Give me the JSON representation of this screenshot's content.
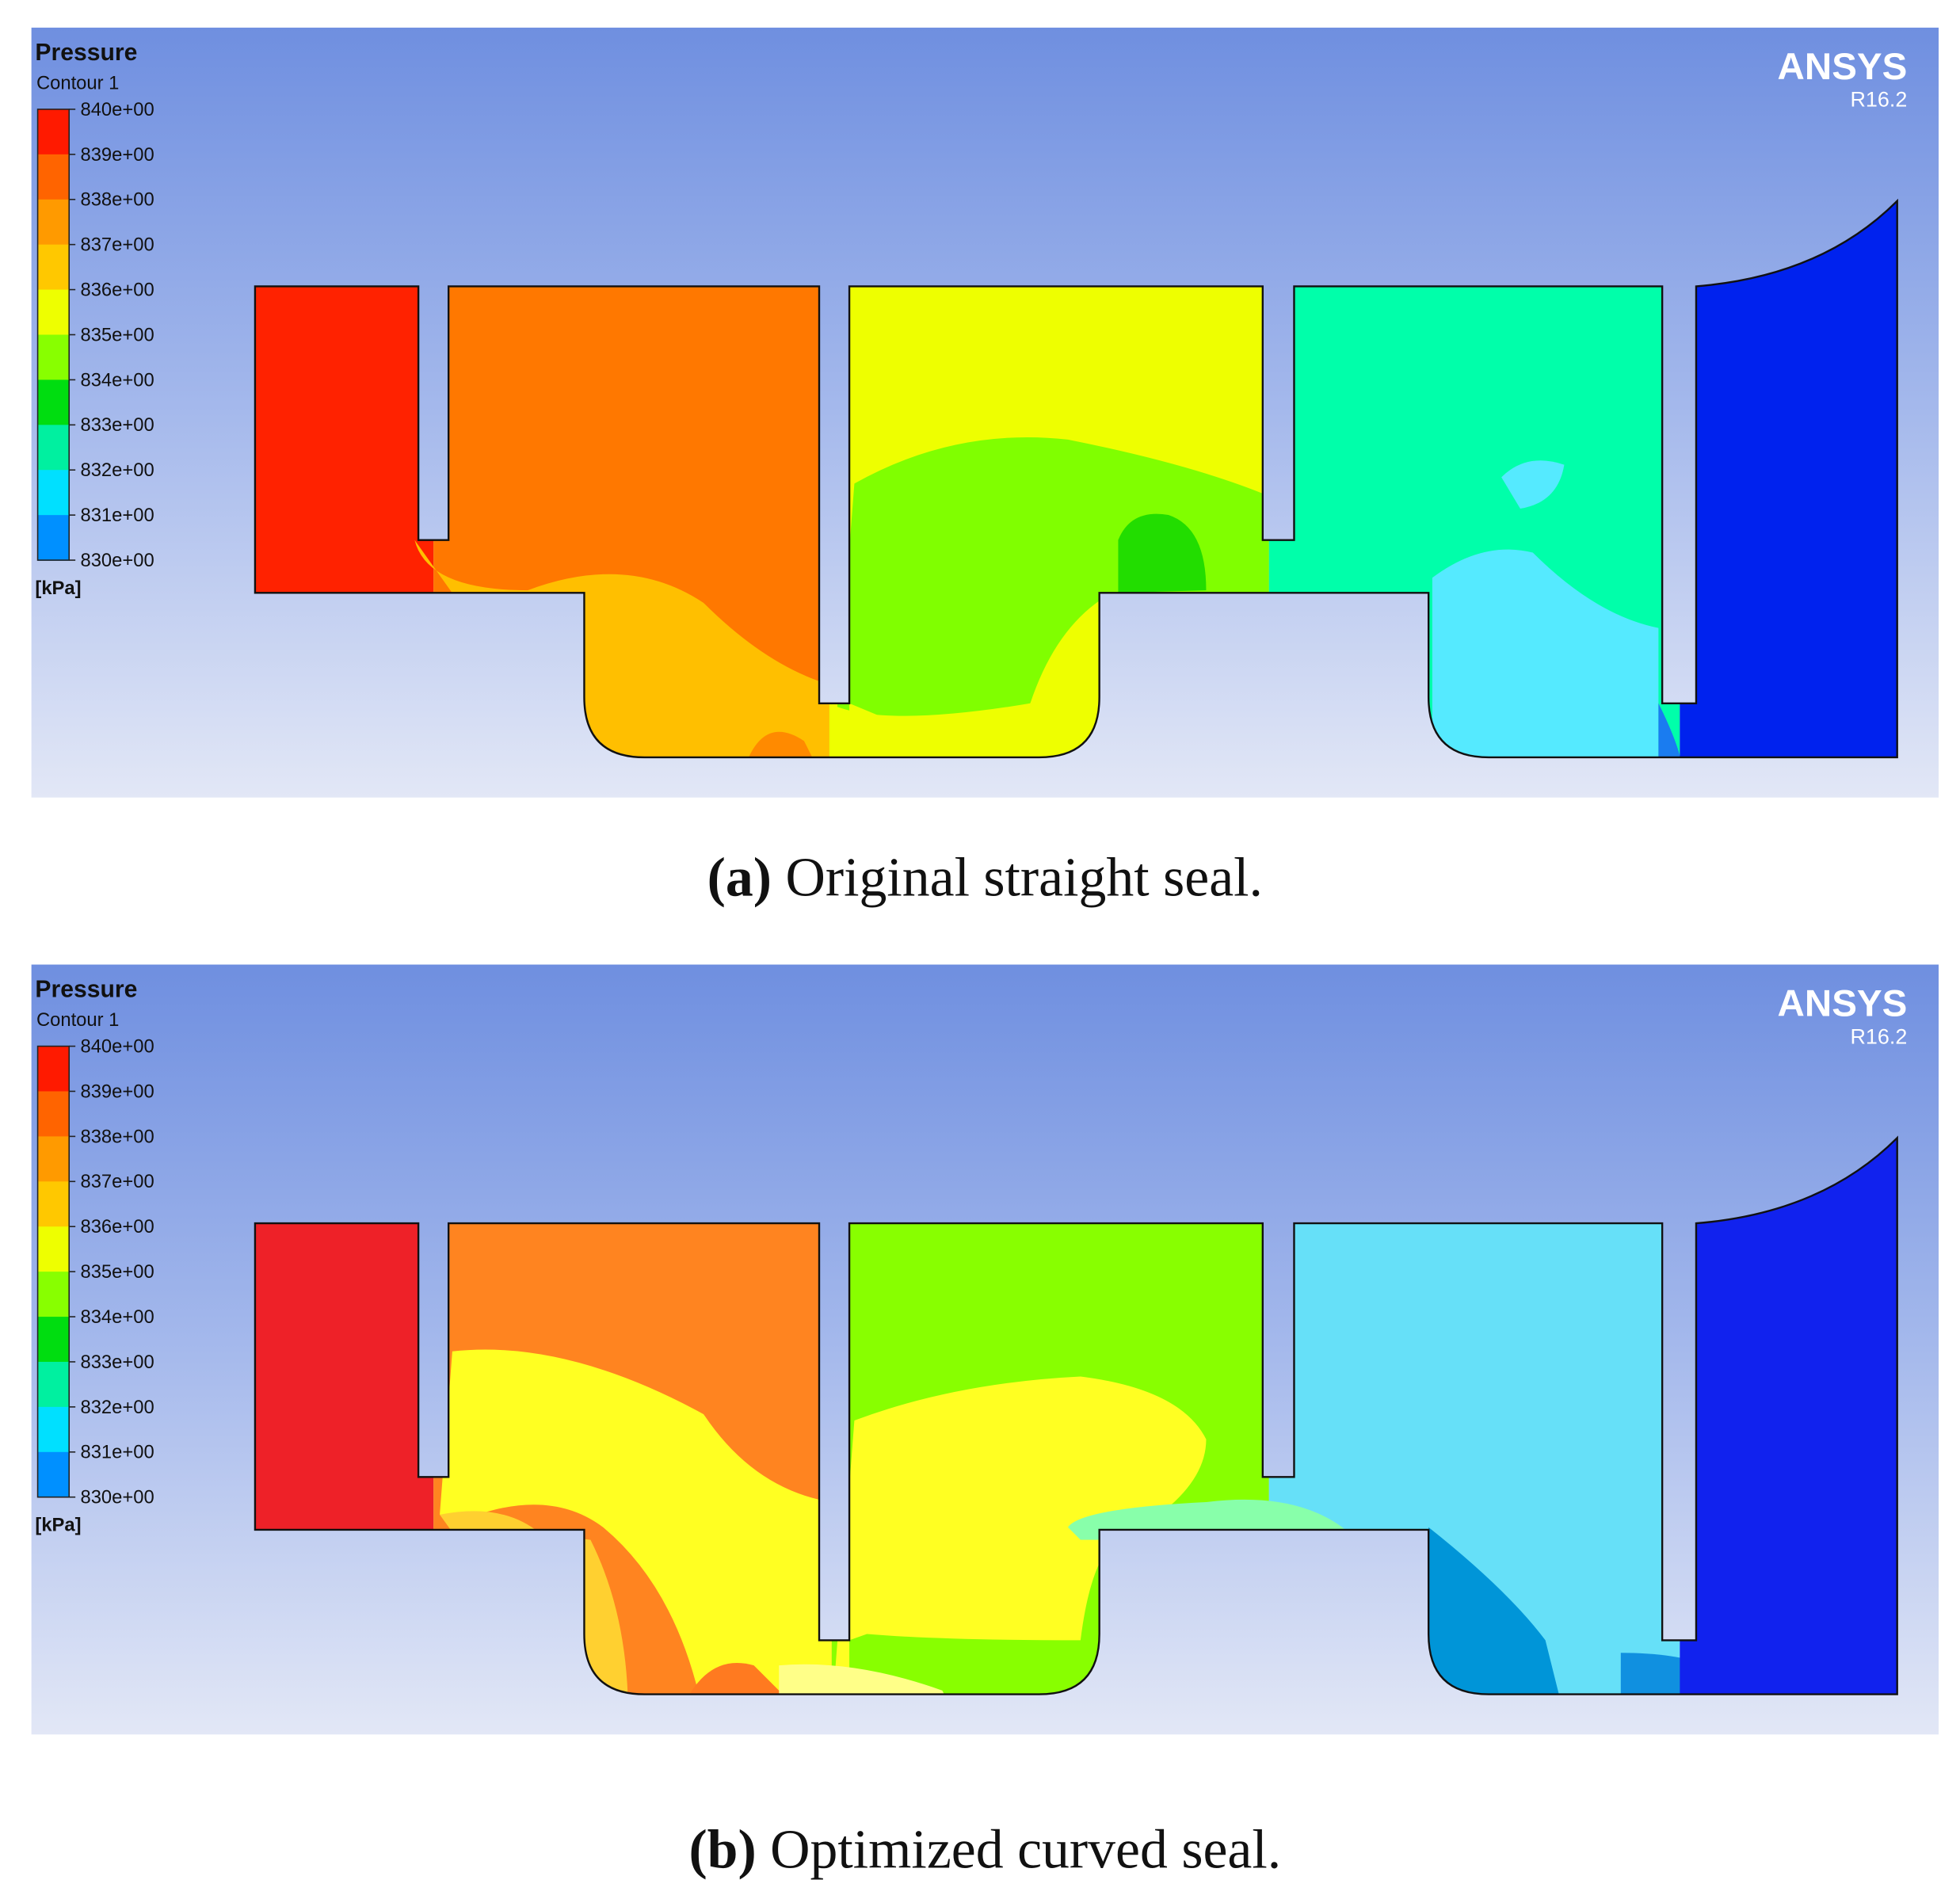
{
  "panels": [
    {
      "legend": {
        "title": "Pressure",
        "subtitle": "Contour 1",
        "ticks": [
          "840e+00",
          "839e+00",
          "838e+00",
          "837e+00",
          "836e+00",
          "835e+00",
          "834e+00",
          "833e+00",
          "832e+00",
          "831e+00",
          "830e+00"
        ],
        "unit": "[kPa]"
      },
      "brand": "ANSYS",
      "version": "R16.2",
      "caption": {
        "label": "(a)",
        "text": "Original straight seal."
      }
    },
    {
      "legend": {
        "title": "Pressure",
        "subtitle": "Contour 1",
        "ticks": [
          "840e+00",
          "839e+00",
          "838e+00",
          "837e+00",
          "836e+00",
          "835e+00",
          "834e+00",
          "833e+00",
          "832e+00",
          "831e+00",
          "830e+00"
        ],
        "unit": "[kPa]"
      },
      "brand": "ANSYS",
      "version": "R16.2",
      "caption": {
        "label": "(b)",
        "text": "Optimized curved seal."
      }
    }
  ]
}
